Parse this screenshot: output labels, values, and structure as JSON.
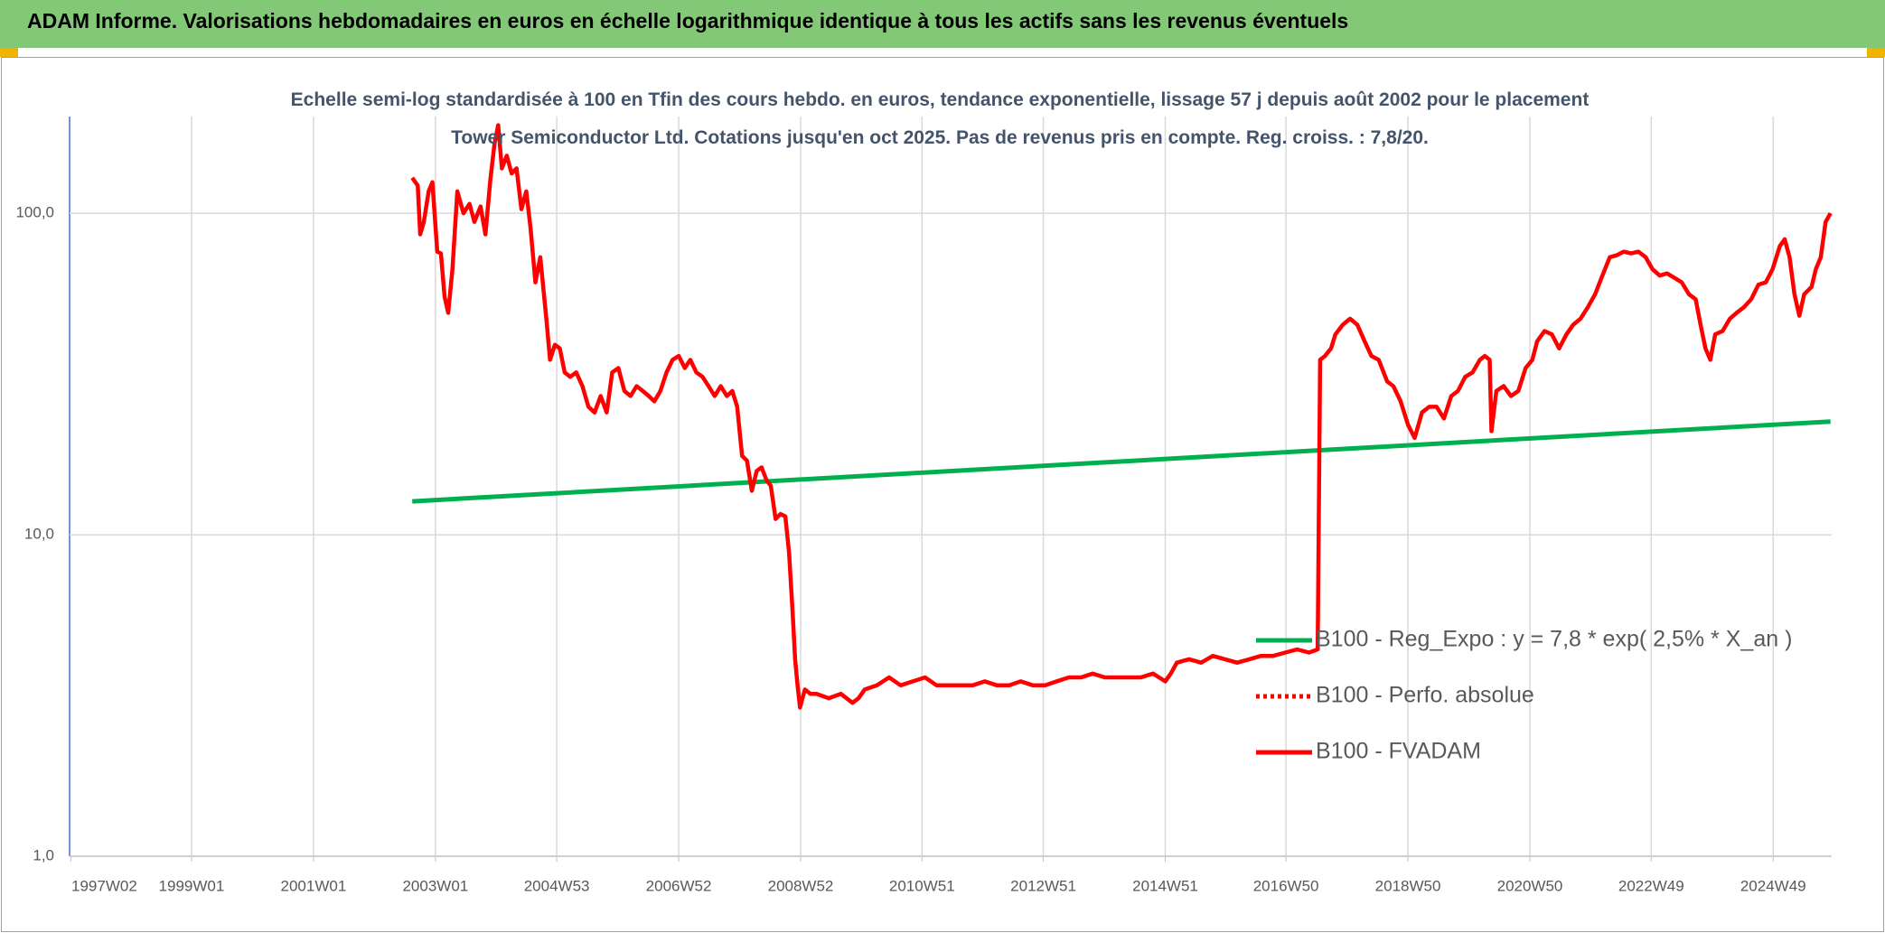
{
  "header": {
    "title": "ADAM Informe. Valorisations hebdomadaires en euros en échelle logarithmique identique à tous les actifs sans les revenus éventuels"
  },
  "chart_data": {
    "type": "line",
    "subtitle": "Echelle semi-log standardisée à 100 en Tfin des cours hebdo. en euros, tendance exponentielle, lissage 57 j depuis août 2002 pour le placement Tower Semiconductor Ltd. Cotations jusqu'en oct 2025. Pas de revenus pris en compte. Reg. croiss. : 7,8/20.",
    "log_scale": true,
    "grid": true,
    "xlim": [
      1997,
      2025.9
    ],
    "xticks": [
      {
        "value": 1997.02,
        "label": "1997W02"
      },
      {
        "value": 1999.0,
        "label": "1999W01"
      },
      {
        "value": 2001.0,
        "label": "2001W01"
      },
      {
        "value": 2003.0,
        "label": "2003W01"
      },
      {
        "value": 2004.99,
        "label": "2004W53"
      },
      {
        "value": 2006.99,
        "label": "2006W52"
      },
      {
        "value": 2008.99,
        "label": "2008W52"
      },
      {
        "value": 2010.98,
        "label": "2010W51"
      },
      {
        "value": 2012.97,
        "label": "2012W51"
      },
      {
        "value": 2014.97,
        "label": "2014W51"
      },
      {
        "value": 2016.95,
        "label": "2016W50"
      },
      {
        "value": 2018.95,
        "label": "2018W50"
      },
      {
        "value": 2020.95,
        "label": "2020W50"
      },
      {
        "value": 2022.94,
        "label": "2022W49"
      },
      {
        "value": 2024.94,
        "label": "2024W49"
      }
    ],
    "ylim": [
      1,
      200
    ],
    "yticks": [
      {
        "value": 1,
        "label": "1,0"
      },
      {
        "value": 10,
        "label": "10,0"
      },
      {
        "value": 100,
        "label": "100,0"
      }
    ],
    "series": [
      {
        "name": "B100 - Reg_Expo : y = 7,8 * exp( 2,5% *  X_an )",
        "color": "#00b050",
        "line_style": "solid",
        "x": [
          2002.62,
          2025.88
        ],
        "values": [
          12.7,
          22.5
        ]
      },
      {
        "name": "B100 - Perfo. absolue",
        "color": "#ff0000",
        "line_style": "dotted",
        "x": [],
        "values": []
      },
      {
        "name": "B100 - FVADAM",
        "color": "#ff0000",
        "line_style": "solid",
        "x": [
          2002.62,
          2002.71,
          2002.75,
          2002.81,
          2002.89,
          2002.95,
          2003.03,
          2003.09,
          2003.15,
          2003.21,
          2003.28,
          2003.36,
          2003.46,
          2003.56,
          2003.64,
          2003.74,
          2003.82,
          2003.9,
          2003.97,
          2004.03,
          2004.09,
          2004.17,
          2004.25,
          2004.33,
          2004.41,
          2004.49,
          2004.56,
          2004.64,
          2004.72,
          2004.82,
          2004.88,
          2004.96,
          2005.04,
          2005.12,
          2005.21,
          2005.31,
          2005.41,
          2005.51,
          2005.61,
          2005.71,
          2005.81,
          2005.9,
          2006.0,
          2006.1,
          2006.2,
          2006.3,
          2006.4,
          2006.5,
          2006.59,
          2006.69,
          2006.79,
          2006.89,
          2006.99,
          2007.09,
          2007.18,
          2007.28,
          2007.38,
          2007.48,
          2007.58,
          2007.68,
          2007.78,
          2007.87,
          2007.95,
          2008.03,
          2008.11,
          2008.19,
          2008.27,
          2008.35,
          2008.43,
          2008.5,
          2008.58,
          2008.66,
          2008.74,
          2008.8,
          2008.86,
          2008.9,
          2008.94,
          2008.98,
          2009.06,
          2009.15,
          2009.25,
          2009.45,
          2009.65,
          2009.84,
          2009.94,
          2010.04,
          2010.24,
          2010.44,
          2010.63,
          2010.83,
          2011.03,
          2011.22,
          2011.42,
          2011.62,
          2011.81,
          2012.01,
          2012.21,
          2012.41,
          2012.6,
          2012.8,
          2013.0,
          2013.19,
          2013.39,
          2013.59,
          2013.78,
          2013.98,
          2014.18,
          2014.38,
          2014.57,
          2014.77,
          2014.97,
          2015.06,
          2015.16,
          2015.36,
          2015.56,
          2015.75,
          2015.95,
          2016.15,
          2016.35,
          2016.54,
          2016.74,
          2016.94,
          2017.13,
          2017.33,
          2017.47,
          2017.51,
          2017.59,
          2017.69,
          2017.76,
          2017.88,
          2018.0,
          2018.12,
          2018.24,
          2018.35,
          2018.47,
          2018.61,
          2018.71,
          2018.83,
          2018.95,
          2019.06,
          2019.18,
          2019.3,
          2019.42,
          2019.54,
          2019.66,
          2019.77,
          2019.89,
          2020.01,
          2020.13,
          2020.21,
          2020.29,
          2020.32,
          2020.4,
          2020.52,
          2020.64,
          2020.76,
          2020.88,
          2020.99,
          2021.07,
          2021.19,
          2021.31,
          2021.43,
          2021.55,
          2021.66,
          2021.78,
          2021.9,
          2022.02,
          2022.14,
          2022.26,
          2022.37,
          2022.49,
          2022.61,
          2022.73,
          2022.85,
          2022.96,
          2023.08,
          2023.2,
          2023.32,
          2023.44,
          2023.56,
          2023.67,
          2023.75,
          2023.83,
          2023.91,
          2023.99,
          2024.11,
          2024.23,
          2024.34,
          2024.46,
          2024.58,
          2024.7,
          2024.82,
          2024.93,
          2025.05,
          2025.13,
          2025.21,
          2025.29,
          2025.37,
          2025.45,
          2025.57,
          2025.64,
          2025.72,
          2025.8,
          2025.88
        ],
        "values": [
          129,
          122,
          86,
          94,
          117,
          125,
          76,
          75,
          55,
          49,
          67,
          117,
          100,
          107,
          94,
          105,
          86,
          127,
          165,
          188,
          138,
          151,
          133,
          138,
          103,
          117,
          90,
          61,
          73,
          47,
          35,
          39,
          38,
          32,
          31,
          32,
          29,
          25,
          24,
          27,
          24,
          32,
          33,
          28,
          27,
          29,
          28,
          27,
          26,
          28,
          32,
          35,
          36,
          33,
          35,
          32,
          31,
          29,
          27,
          29,
          27,
          28,
          25,
          17.6,
          17,
          13.7,
          15.8,
          16.2,
          14.8,
          14.2,
          11.2,
          11.6,
          11.4,
          8.8,
          5.7,
          4.1,
          3.4,
          2.9,
          3.3,
          3.2,
          3.2,
          3.1,
          3.2,
          3.0,
          3.1,
          3.3,
          3.4,
          3.6,
          3.4,
          3.5,
          3.6,
          3.4,
          3.4,
          3.4,
          3.4,
          3.5,
          3.4,
          3.4,
          3.5,
          3.4,
          3.4,
          3.5,
          3.6,
          3.6,
          3.7,
          3.6,
          3.6,
          3.6,
          3.6,
          3.7,
          3.5,
          3.7,
          4.0,
          4.1,
          4.0,
          4.2,
          4.1,
          4.0,
          4.1,
          4.2,
          4.2,
          4.3,
          4.4,
          4.3,
          4.4,
          35,
          36,
          38,
          42,
          45,
          47,
          45,
          40,
          36,
          35,
          30,
          29,
          26,
          22,
          20,
          24,
          25,
          25,
          23,
          27,
          28,
          31,
          32,
          35,
          36,
          35,
          21,
          28,
          29,
          27,
          28,
          33,
          35,
          40,
          43,
          42,
          38,
          42,
          45,
          47,
          51,
          56,
          64,
          73,
          74,
          76,
          75,
          76,
          73,
          67,
          64,
          65,
          63,
          61,
          56,
          54,
          45,
          38,
          35,
          42,
          43,
          47,
          49,
          51,
          54,
          60,
          61,
          67,
          79,
          83,
          73,
          56,
          48,
          56,
          59,
          67,
          73,
          94,
          100
        ]
      }
    ]
  }
}
